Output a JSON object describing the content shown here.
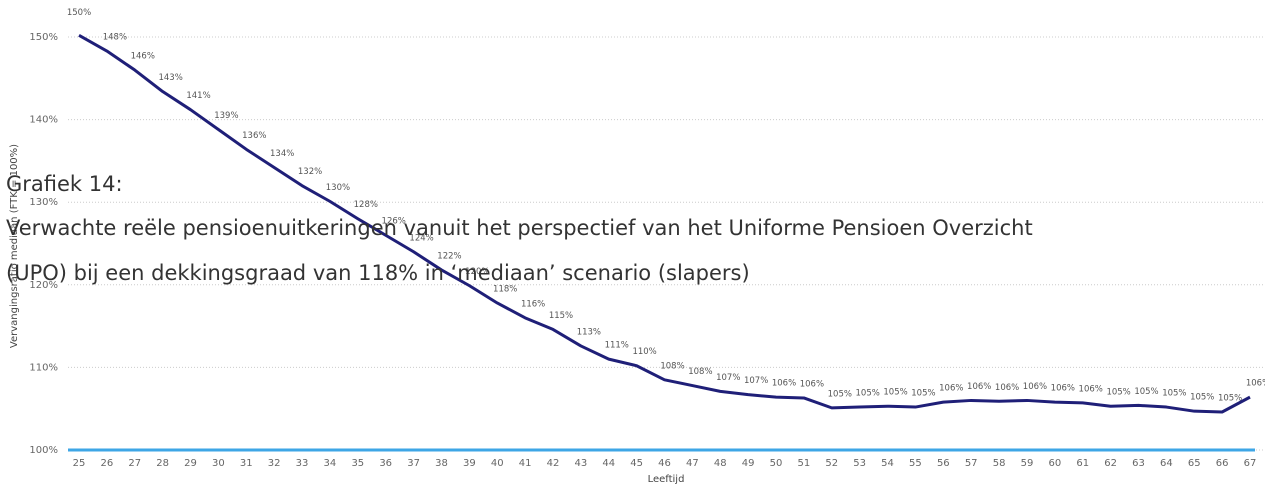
{
  "chart_data": {
    "type": "line",
    "y_axis_label": "Vervangingsratio mediaan (FTK = 100%)",
    "x_axis_label": "Leeftijd",
    "x": [
      25,
      26,
      27,
      28,
      29,
      30,
      31,
      32,
      33,
      34,
      35,
      36,
      37,
      38,
      39,
      40,
      41,
      42,
      43,
      44,
      45,
      46,
      47,
      48,
      49,
      50,
      51,
      52,
      53,
      54,
      55,
      56,
      57,
      58,
      59,
      60,
      61,
      62,
      63,
      64,
      65,
      66,
      67
    ],
    "xlim": [
      25,
      67
    ],
    "ylim": [
      100,
      150
    ],
    "yticks": [
      {
        "value": 100,
        "label": "100%"
      },
      {
        "value": 110,
        "label": "110%"
      },
      {
        "value": 120,
        "label": "120%"
      },
      {
        "value": 130,
        "label": "130%"
      },
      {
        "value": 140,
        "label": "140%"
      },
      {
        "value": 150,
        "label": "150%"
      }
    ],
    "grid": true,
    "reference_line": {
      "value": 100,
      "color": "#3ea6e6"
    },
    "series": [
      {
        "color": "#1f1f78",
        "values": [
          150.2,
          148.3,
          146.0,
          143.4,
          141.2,
          138.8,
          136.4,
          134.2,
          132.0,
          130.1,
          128.0,
          126.0,
          124.0,
          121.8,
          119.9,
          117.8,
          116.0,
          114.6,
          112.6,
          111.0,
          110.2,
          108.5,
          107.8,
          107.1,
          106.7,
          106.4,
          106.3,
          105.1,
          105.2,
          105.3,
          105.2,
          105.8,
          106.0,
          105.9,
          106.0,
          105.8,
          105.7,
          105.3,
          105.4,
          105.2,
          104.7,
          104.6,
          106.4
        ],
        "value_labels": [
          "150%",
          "148%",
          "146%",
          "143%",
          "141%",
          "139%",
          "136%",
          "134%",
          "132%",
          "130%",
          "128%",
          "126%",
          "124%",
          "122%",
          "120%",
          "118%",
          "116%",
          "115%",
          "113%",
          "111%",
          "110%",
          "108%",
          "108%",
          "107%",
          "107%",
          "106%",
          "106%",
          "105%",
          "105%",
          "105%",
          "105%",
          "106%",
          "106%",
          "106%",
          "106%",
          "106%",
          "106%",
          "105%",
          "105%",
          "105%",
          "105%",
          "105%",
          "106%"
        ]
      }
    ]
  },
  "caption": {
    "label": "Grafiek 14:",
    "lines": [
      "Verwachte reële pensioenuitkeringen vanuit het perspectief van het Uniforme Pensioen Overzicht",
      "(UPO) bij een dekkingsgraad van 118% in ‘mediaan’ scenario (slapers)"
    ]
  }
}
